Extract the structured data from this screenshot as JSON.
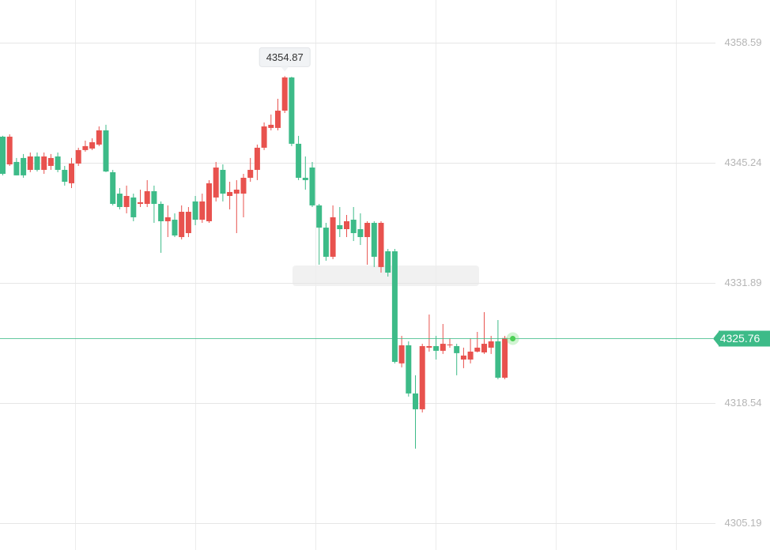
{
  "chart_data": {
    "type": "candlestick",
    "open": [
      4348.14,
      4345.06,
      4345.33,
      4345.77,
      4344.45,
      4345.94,
      4344.45,
      4344.89,
      4345.94,
      4344.45,
      4342.96,
      4345.15,
      4346.65,
      4346.82,
      4347.26,
      4348.84,
      4344.19,
      4341.81,
      4340.32,
      4341.38,
      4340.67,
      4340.67,
      4342.08,
      4340.67,
      4338.74,
      4338.91,
      4336.98,
      4337.42,
      4340.94,
      4338.91,
      4338.74,
      4341.38,
      4344.45,
      4341.55,
      4341.81,
      4341.81,
      4343.57,
      4344.45,
      4346.91,
      4349.11,
      4349.11,
      4351.03,
      4354.72,
      4347.35,
      4343.57,
      4344.71,
      4340.5,
      4338.03,
      4334.79,
      4338.3,
      4337.86,
      4338.91,
      4337.86,
      4336.98,
      4338.56,
      4333.65,
      4335.4,
      4335.4,
      4322.94,
      4324.95,
      4319.6,
      4317.84,
      4324.69,
      4324.86,
      4324.34,
      4324.95,
      4324.86,
      4323.37,
      4323.37,
      4324.25,
      4324.16,
      4324.69,
      4325.39,
      4321.35
    ],
    "high": [
      4348.23,
      4348.4,
      4345.77,
      4346.21,
      4346.38,
      4346.38,
      4346.38,
      4346.21,
      4346.38,
      4344.89,
      4345.77,
      4346.91,
      4347.7,
      4347.96,
      4349.28,
      4349.46,
      4344.45,
      4342.43,
      4342.7,
      4341.81,
      4342.25,
      4343.31,
      4342.7,
      4340.94,
      4340.5,
      4339.62,
      4340.5,
      4340.32,
      4341.55,
      4341.81,
      4343.31,
      4345.33,
      4345.06,
      4343.13,
      4343.31,
      4344.01,
      4345.77,
      4347.26,
      4349.72,
      4350.6,
      4352.35,
      4354.87,
      4354.8,
      4348.23,
      4345.94,
      4345.33,
      4340.67,
      4338.56,
      4340.5,
      4340.32,
      4339.44,
      4340.32,
      4339.62,
      4338.74,
      4338.74,
      4338.74,
      4335.66,
      4335.66,
      4326.0,
      4325.39,
      4321.62,
      4325.12,
      4328.37,
      4326.0,
      4327.32,
      4325.74,
      4325.12,
      4324.69,
      4325.74,
      4326.44,
      4328.64,
      4326.0,
      4327.76,
      4326.0
    ],
    "low": [
      4343.84,
      4344.89,
      4343.84,
      4343.57,
      4344.19,
      4344.27,
      4344.01,
      4344.45,
      4344.19,
      4342.7,
      4342.43,
      4344.89,
      4346.47,
      4346.65,
      4347.09,
      4344.19,
      4340.5,
      4340.06,
      4339.62,
      4338.74,
      4340.32,
      4340.32,
      4338.56,
      4335.23,
      4336.98,
      4336.98,
      4336.72,
      4336.98,
      4338.3,
      4338.56,
      4338.56,
      4340.94,
      4340.94,
      4340.06,
      4337.42,
      4339.18,
      4343.13,
      4343.31,
      4346.65,
      4348.84,
      4348.84,
      4350.77,
      4347.09,
      4343.31,
      4342.25,
      4340.32,
      4333.91,
      4334.35,
      4334.52,
      4336.98,
      4336.98,
      4336.54,
      4336.1,
      4333.91,
      4333.65,
      4333.03,
      4332.59,
      4322.94,
      4322.5,
      4319.25,
      4313.46,
      4317.49,
      4324.25,
      4323.37,
      4323.99,
      4324.69,
      4321.62,
      4322.41,
      4322.94,
      4324.16,
      4323.99,
      4323.99,
      4321.18,
      4321.18
    ],
    "close": [
      4344.01,
      4348.14,
      4343.84,
      4343.84,
      4345.94,
      4344.45,
      4345.94,
      4345.77,
      4344.45,
      4343.13,
      4345.15,
      4346.65,
      4347.09,
      4347.52,
      4348.84,
      4344.27,
      4340.67,
      4340.32,
      4341.55,
      4339.18,
      4340.85,
      4342.08,
      4340.67,
      4338.74,
      4339.18,
      4337.16,
      4339.79,
      4339.79,
      4338.91,
      4340.94,
      4342.96,
      4344.71,
      4341.81,
      4341.99,
      4342.25,
      4343.57,
      4344.45,
      4346.91,
      4349.28,
      4349.46,
      4351.03,
      4354.72,
      4347.35,
      4343.57,
      4343.31,
      4340.5,
      4338.03,
      4334.79,
      4339.18,
      4337.86,
      4338.74,
      4337.42,
      4336.98,
      4338.56,
      4334.79,
      4338.56,
      4333.03,
      4323.11,
      4324.95,
      4319.6,
      4317.84,
      4324.86,
      4324.86,
      4324.34,
      4325.12,
      4325.04,
      4324.08,
      4323.81,
      4324.25,
      4324.69,
      4325.12,
      4325.39,
      4321.35,
      4325.76
    ],
    "up_color": "#e8524e",
    "down_color": "#3dbb88",
    "ylim": [
      4302.2,
      4363.33
    ],
    "yticks": [
      4358.59,
      4345.24,
      4331.89,
      4318.54,
      4305.19
    ],
    "grid": true
  }
}
